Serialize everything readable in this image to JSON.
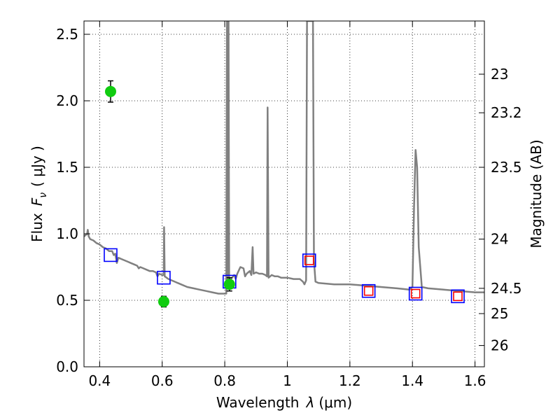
{
  "chart_data": {
    "type": "scatter",
    "xlabel_text": "Wavelength",
    "xlabel_symbol": "λ",
    "xlabel_unit": "(μm)",
    "ylabel_text": "Flux",
    "ylabel_symbol": "F",
    "ylabel_subscript": "ν",
    "ylabel_unit": "( μJy )",
    "y2label": "Magnitude (AB)",
    "xlim": [
      0.35,
      1.63
    ],
    "ylim": [
      0.0,
      2.6
    ],
    "grid": true,
    "x_ticks": [
      {
        "value": 0.4,
        "label": "0.4"
      },
      {
        "value": 0.6,
        "label": "0.6"
      },
      {
        "value": 0.8,
        "label": "0.8"
      },
      {
        "value": 1.0,
        "label": "1"
      },
      {
        "value": 1.2,
        "label": "1.2"
      },
      {
        "value": 1.4,
        "label": "1.4"
      },
      {
        "value": 1.6,
        "label": "1.6"
      }
    ],
    "y_ticks": [
      {
        "value": 0.0,
        "label": "0.0"
      },
      {
        "value": 0.5,
        "label": "0.5"
      },
      {
        "value": 1.0,
        "label": "1.0"
      },
      {
        "value": 1.5,
        "label": "1.5"
      },
      {
        "value": 2.0,
        "label": "2.0"
      },
      {
        "value": 2.5,
        "label": "2.5"
      }
    ],
    "y2_ticks": [
      {
        "flux": 2.2,
        "label": "23"
      },
      {
        "flux": 1.91,
        "label": "23.2"
      },
      {
        "flux": 1.5,
        "label": "23.5"
      },
      {
        "flux": 0.96,
        "label": "24"
      },
      {
        "flux": 0.59,
        "label": "24.5"
      },
      {
        "flux": 0.4,
        "label": "25"
      },
      {
        "flux": 0.16,
        "label": "26"
      }
    ],
    "series": [
      {
        "kind": "model-spectrum",
        "color": "#808080",
        "points": [
          [
            0.35,
            0.98
          ],
          [
            0.36,
            1.0
          ],
          [
            0.362,
            1.03
          ],
          [
            0.365,
            0.98
          ],
          [
            0.37,
            0.96
          ],
          [
            0.38,
            0.95
          ],
          [
            0.39,
            0.93
          ],
          [
            0.4,
            0.92
          ],
          [
            0.41,
            0.9
          ],
          [
            0.42,
            0.89
          ],
          [
            0.43,
            0.87
          ],
          [
            0.44,
            0.87
          ],
          [
            0.445,
            0.84
          ],
          [
            0.45,
            0.85
          ],
          [
            0.455,
            0.78
          ],
          [
            0.46,
            0.82
          ],
          [
            0.47,
            0.81
          ],
          [
            0.48,
            0.8
          ],
          [
            0.49,
            0.79
          ],
          [
            0.5,
            0.78
          ],
          [
            0.51,
            0.77
          ],
          [
            0.52,
            0.76
          ],
          [
            0.525,
            0.74
          ],
          [
            0.53,
            0.75
          ],
          [
            0.54,
            0.74
          ],
          [
            0.55,
            0.73
          ],
          [
            0.56,
            0.72
          ],
          [
            0.57,
            0.72
          ],
          [
            0.58,
            0.71
          ],
          [
            0.585,
            0.68
          ],
          [
            0.59,
            0.7
          ],
          [
            0.6,
            0.69
          ],
          [
            0.605,
            0.69
          ],
          [
            0.606,
            1.05
          ],
          [
            0.608,
            0.68
          ],
          [
            0.62,
            0.66
          ],
          [
            0.64,
            0.64
          ],
          [
            0.66,
            0.62
          ],
          [
            0.68,
            0.6
          ],
          [
            0.7,
            0.59
          ],
          [
            0.72,
            0.58
          ],
          [
            0.74,
            0.57
          ],
          [
            0.76,
            0.56
          ],
          [
            0.78,
            0.55
          ],
          [
            0.795,
            0.55
          ],
          [
            0.8,
            0.55
          ],
          [
            0.805,
            0.55
          ],
          [
            0.807,
            2.6
          ],
          [
            0.808,
            2.6
          ],
          [
            0.81,
            0.62
          ],
          [
            0.812,
            2.6
          ],
          [
            0.814,
            0.65
          ],
          [
            0.82,
            0.66
          ],
          [
            0.83,
            0.69
          ],
          [
            0.835,
            0.66
          ],
          [
            0.84,
            0.7
          ],
          [
            0.85,
            0.75
          ],
          [
            0.86,
            0.74
          ],
          [
            0.865,
            0.68
          ],
          [
            0.87,
            0.7
          ],
          [
            0.88,
            0.72
          ],
          [
            0.885,
            0.69
          ],
          [
            0.889,
            0.9
          ],
          [
            0.892,
            0.7
          ],
          [
            0.9,
            0.71
          ],
          [
            0.91,
            0.7
          ],
          [
            0.92,
            0.7
          ],
          [
            0.93,
            0.69
          ],
          [
            0.935,
            0.68
          ],
          [
            0.937,
            1.95
          ],
          [
            0.94,
            0.67
          ],
          [
            0.95,
            0.69
          ],
          [
            0.96,
            0.68
          ],
          [
            0.97,
            0.68
          ],
          [
            0.98,
            0.67
          ],
          [
            0.99,
            0.67
          ],
          [
            1.0,
            0.67
          ],
          [
            1.02,
            0.66
          ],
          [
            1.04,
            0.66
          ],
          [
            1.05,
            0.64
          ],
          [
            1.055,
            0.62
          ],
          [
            1.06,
            0.65
          ],
          [
            1.063,
            2.6
          ],
          [
            1.07,
            2.6
          ],
          [
            1.075,
            2.6
          ],
          [
            1.082,
            2.6
          ],
          [
            1.085,
            0.8
          ],
          [
            1.09,
            0.64
          ],
          [
            1.1,
            0.63
          ],
          [
            1.15,
            0.62
          ],
          [
            1.2,
            0.62
          ],
          [
            1.25,
            0.61
          ],
          [
            1.3,
            0.6
          ],
          [
            1.35,
            0.59
          ],
          [
            1.39,
            0.58
          ],
          [
            1.4,
            0.6
          ],
          [
            1.405,
            1.2
          ],
          [
            1.41,
            1.63
          ],
          [
            1.415,
            1.5
          ],
          [
            1.42,
            0.9
          ],
          [
            1.43,
            0.6
          ],
          [
            1.45,
            0.59
          ],
          [
            1.5,
            0.58
          ],
          [
            1.55,
            0.57
          ],
          [
            1.6,
            0.56
          ],
          [
            1.63,
            0.56
          ]
        ]
      },
      {
        "kind": "model-bands",
        "marker": "open-square",
        "color": "#0000ff",
        "points": [
          [
            0.435,
            0.84
          ],
          [
            0.605,
            0.67
          ],
          [
            0.815,
            0.64
          ],
          [
            1.07,
            0.8
          ],
          [
            1.26,
            0.57
          ],
          [
            1.41,
            0.55
          ],
          [
            1.545,
            0.53
          ]
        ]
      },
      {
        "kind": "observed",
        "marker": "open-square",
        "color": "#ff0000",
        "points": [
          [
            1.07,
            0.8
          ],
          [
            1.26,
            0.57
          ],
          [
            1.41,
            0.55
          ],
          [
            1.545,
            0.53
          ]
        ]
      },
      {
        "kind": "observed",
        "marker": "filled-circle",
        "color": "#11cc11",
        "points": [
          {
            "x": 0.435,
            "y": 2.07,
            "err": 0.08
          },
          {
            "x": 0.605,
            "y": 0.49,
            "err": 0.04
          },
          {
            "x": 0.815,
            "y": 0.62,
            "err": 0.05
          }
        ]
      }
    ]
  }
}
